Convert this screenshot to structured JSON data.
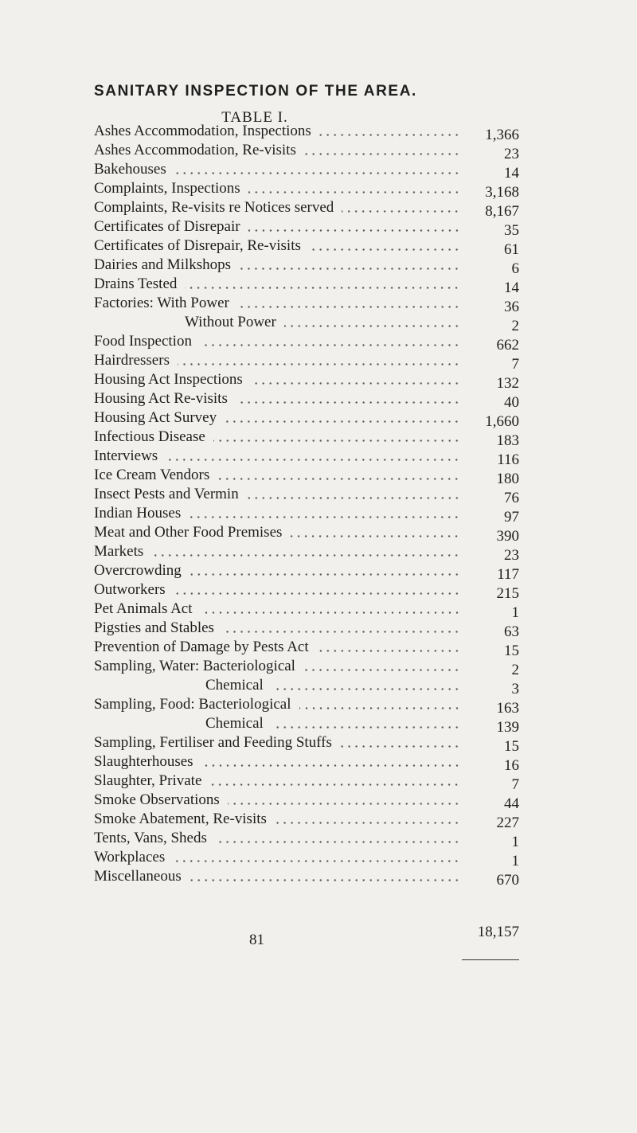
{
  "header": {
    "title": "SANITARY INSPECTION OF THE AREA.",
    "subtitle": "TABLE I."
  },
  "table": {
    "rows": [
      [
        "Ashes Accommodation, Inspections",
        "1,366"
      ],
      [
        "Ashes Accommodation, Re-visits",
        "23"
      ],
      [
        "Bakehouses",
        "14"
      ],
      [
        "Complaints, Inspections",
        "3,168"
      ],
      [
        "Complaints, Re-visits re Notices served",
        "8,167"
      ],
      [
        "Certificates of Disrepair",
        "35"
      ],
      [
        "Certificates of Disrepair, Re-visits",
        "61"
      ],
      [
        "Dairies and Milkshops",
        "6"
      ],
      [
        "Drains Tested",
        "14"
      ],
      [
        "Factories: With Power",
        "36"
      ],
      [
        "Without Power",
        "2"
      ],
      [
        "Food Inspection",
        "662"
      ],
      [
        "Hairdressers",
        "7"
      ],
      [
        "Housing Act Inspections",
        "132"
      ],
      [
        "Housing Act Re-visits",
        "40"
      ],
      [
        "Housing Act Survey",
        "1,660"
      ],
      [
        "Infectious Disease",
        "183"
      ],
      [
        "Interviews",
        "116"
      ],
      [
        "Ice Cream Vendors",
        "180"
      ],
      [
        "Insect Pests and Vermin",
        "76"
      ],
      [
        "Indian Houses",
        "97"
      ],
      [
        "Meat and Other Food Premises",
        "390"
      ],
      [
        "Markets",
        "23"
      ],
      [
        "Overcrowding",
        "117"
      ],
      [
        "Outworkers",
        "215"
      ],
      [
        "Pet Animals Act",
        "1"
      ],
      [
        "Pigsties and Stables",
        "63"
      ],
      [
        "Prevention of Damage by Pests Act",
        "15"
      ],
      [
        "Sampling, Water: Bacteriological",
        "2"
      ],
      [
        "Chemical",
        "3"
      ],
      [
        "Sampling, Food: Bacteriological",
        "163"
      ],
      [
        "Chemical",
        "139"
      ],
      [
        "Sampling, Fertiliser and Feeding Stuffs",
        "15"
      ],
      [
        "Slaughterhouses",
        "16"
      ],
      [
        "Slaughter, Private",
        "7"
      ],
      [
        "Smoke Observations",
        "44"
      ],
      [
        "Smoke Abatement, Re-visits",
        "227"
      ],
      [
        "Tents, Vans, Sheds",
        "1"
      ],
      [
        "Workplaces",
        "1"
      ],
      [
        "Miscellaneous",
        "670"
      ]
    ],
    "total": "18,157"
  },
  "footer": {
    "page_number": "81"
  }
}
